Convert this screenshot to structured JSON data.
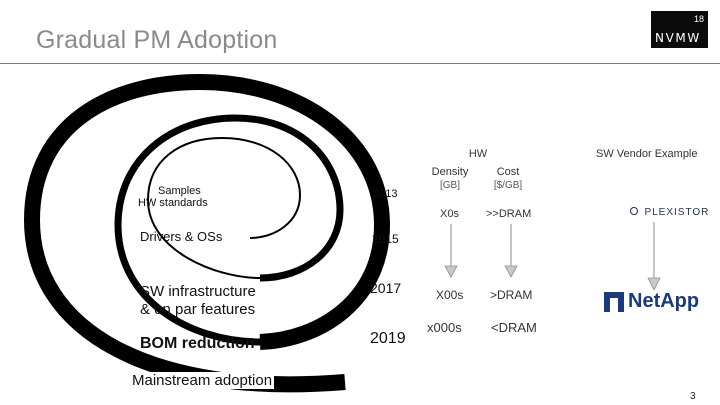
{
  "slide": {
    "title": "Gradual PM Adoption",
    "page_number": "3"
  },
  "logo": {
    "number": "18",
    "word": "NVMW"
  },
  "stages": [
    "Samples",
    "HW standards",
    "Drivers & OSs",
    "SW infrastructure",
    "& on par features",
    "BOM reduction",
    "Mainstream adoption"
  ],
  "years": [
    "2013",
    "2015",
    "2017",
    "2019"
  ],
  "hw": {
    "header": "HW",
    "density_label": "Density",
    "density_unit": "[GB]",
    "cost_label": "Cost",
    "cost_unit": "[$/GB]",
    "density_values": [
      "X0s",
      "X00s",
      "x000s"
    ],
    "cost_values": [
      ">>DRAM",
      ">DRAM",
      "<DRAM"
    ]
  },
  "vendor": {
    "header": "SW Vendor Example",
    "first": "PLEXISTOR",
    "second": "NetApp"
  }
}
